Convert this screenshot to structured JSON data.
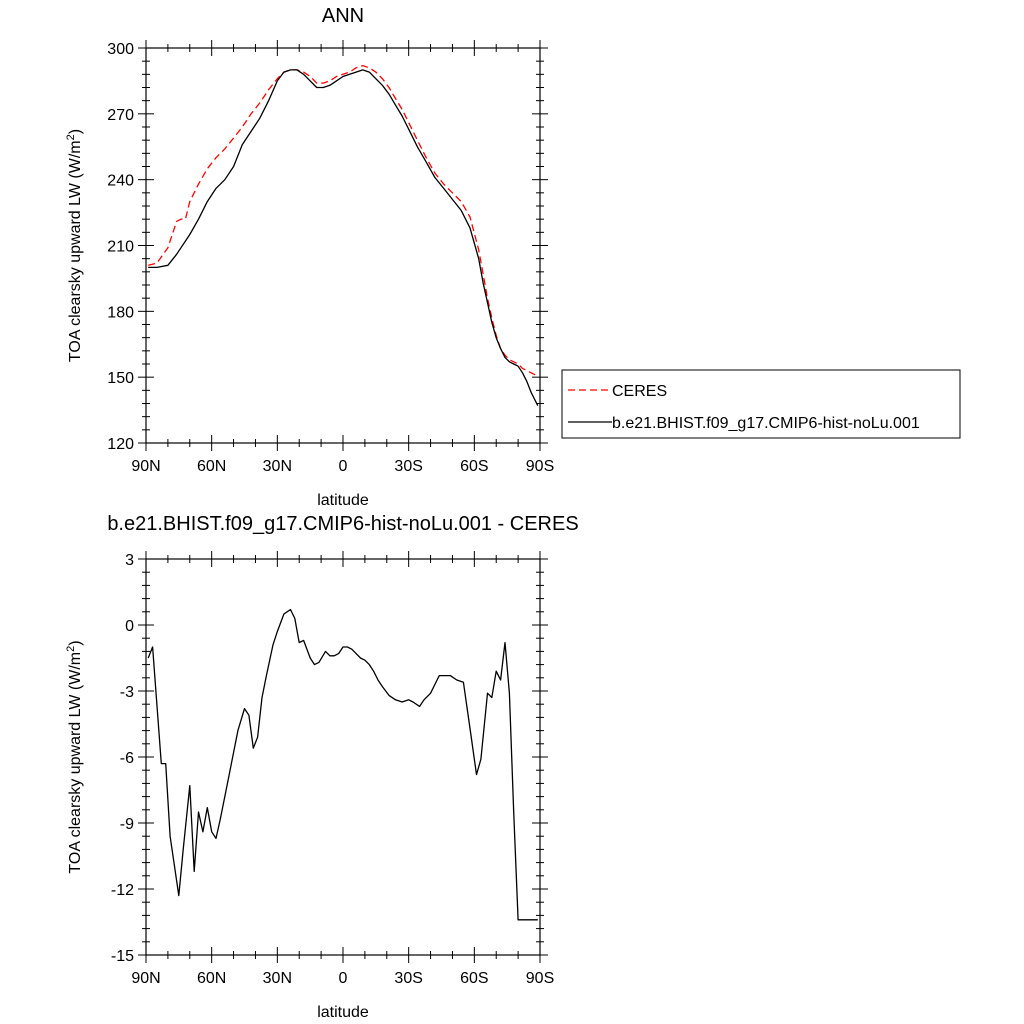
{
  "chart_data": [
    {
      "type": "line",
      "title": "ANN",
      "xlabel": "latitude",
      "ylabel": "TOA clearsky upward LW (W/m",
      "ylabel_sup": "2",
      "ylabel_end": ")",
      "xlim": [
        90,
        -90
      ],
      "ylim": [
        120,
        300
      ],
      "x_ticks": [
        90,
        60,
        30,
        0,
        -30,
        -60,
        -90
      ],
      "x_tick_labels": [
        "90N",
        "60N",
        "30N",
        "0",
        "30S",
        "60S",
        "90S"
      ],
      "y_ticks": [
        120,
        150,
        180,
        210,
        240,
        270,
        300
      ],
      "y_tick_labels": [
        "120",
        "150",
        "180",
        "210",
        "240",
        "270",
        "300"
      ],
      "legend_position": "right",
      "series": [
        {
          "name": "CERES",
          "color": "#ff0000",
          "dash": "dashed",
          "x": [
            89,
            85,
            80,
            76,
            74,
            72,
            70,
            66,
            62,
            58,
            54,
            50,
            46,
            42,
            38,
            34,
            30,
            27,
            24,
            21,
            18,
            15,
            12,
            9,
            6,
            3,
            0,
            -3,
            -6,
            -9,
            -12,
            -15,
            -18,
            -21,
            -24,
            -27,
            -30,
            -34,
            -38,
            -42,
            -46,
            -50,
            -54,
            -58,
            -62,
            -64,
            -66,
            -68,
            -70,
            -72,
            -74,
            -76,
            -78,
            -80,
            -82,
            -84,
            -86,
            -88,
            -89
          ],
          "values": [
            201,
            202,
            209,
            221,
            222,
            222,
            230,
            238,
            245,
            250,
            254,
            259,
            264,
            270,
            275,
            281,
            286,
            289,
            290,
            290,
            289,
            287,
            284,
            284,
            285,
            287,
            288,
            289,
            291,
            292,
            291,
            289,
            286,
            282,
            277,
            272,
            266,
            258,
            250,
            243,
            238,
            234,
            230,
            223,
            208,
            197,
            186,
            177,
            169,
            163,
            160,
            158,
            157,
            156,
            154,
            153,
            152,
            151,
            151
          ]
        },
        {
          "name": "b.e21.BHIST.f09_g17.CMIP6-hist-noLu.001",
          "color": "#000000",
          "dash": "solid",
          "x": [
            89,
            85,
            80,
            76,
            74,
            72,
            70,
            66,
            62,
            58,
            54,
            50,
            46,
            42,
            38,
            34,
            30,
            27,
            24,
            21,
            18,
            15,
            12,
            9,
            6,
            3,
            0,
            -3,
            -6,
            -9,
            -12,
            -15,
            -18,
            -21,
            -24,
            -27,
            -30,
            -34,
            -38,
            -42,
            -46,
            -50,
            -54,
            -58,
            -62,
            -64,
            -66,
            -68,
            -70,
            -72,
            -74,
            -76,
            -78,
            -80,
            -82,
            -84,
            -86,
            -88,
            -89
          ],
          "values": [
            200,
            200,
            201,
            206,
            209,
            212,
            215,
            222,
            230,
            236,
            240,
            246,
            256,
            262,
            268,
            276,
            285,
            289,
            290,
            290,
            288,
            285,
            282,
            282,
            283,
            285,
            287,
            288,
            289,
            290,
            289,
            286,
            283,
            279,
            274,
            269,
            263,
            255,
            248,
            241,
            236,
            231,
            226,
            218,
            204,
            193,
            184,
            175,
            168,
            163,
            159,
            157,
            156,
            155,
            152,
            148,
            143,
            139,
            137
          ]
        }
      ]
    },
    {
      "type": "line",
      "title": "b.e21.BHIST.f09_g17.CMIP6-hist-noLu.001 - CERES",
      "xlabel": "latitude",
      "ylabel": "TOA clearsky upward LW (W/m",
      "ylabel_sup": "2",
      "ylabel_end": ")",
      "xlim": [
        90,
        -90
      ],
      "ylim": [
        -15,
        3
      ],
      "x_ticks": [
        90,
        60,
        30,
        0,
        -30,
        -60,
        -90
      ],
      "x_tick_labels": [
        "90N",
        "60N",
        "30N",
        "0",
        "30S",
        "60S",
        "90S"
      ],
      "y_ticks": [
        -15,
        -12,
        -9,
        -6,
        -3,
        0,
        3
      ],
      "y_tick_labels": [
        "-15",
        "-12",
        "-9",
        "-6",
        "-3",
        "0",
        "3"
      ],
      "series": [
        {
          "color": "#000000",
          "x": [
            89,
            87,
            83,
            81,
            79,
            75,
            73,
            70,
            68,
            66,
            64,
            62,
            60,
            58,
            56,
            52,
            48,
            45,
            43,
            41,
            39,
            37,
            35,
            32,
            30,
            27,
            24,
            22,
            20,
            18,
            15,
            13,
            11,
            8,
            6,
            4,
            2,
            0,
            -2,
            -4,
            -6,
            -8,
            -10,
            -12,
            -14,
            -16,
            -18,
            -21,
            -24,
            -27,
            -30,
            -32,
            -35,
            -37,
            -40,
            -42,
            -44,
            -46,
            -49,
            -52,
            -55,
            -58,
            -61,
            -63,
            -66,
            -68,
            -70,
            -72,
            -74,
            -76,
            -78,
            -80,
            -82,
            -84,
            -86,
            -88,
            -89
          ],
          "values": [
            -1.5,
            -1.0,
            -6.3,
            -6.3,
            -9.6,
            -12.3,
            -10.2,
            -7.3,
            -11.2,
            -8.5,
            -9.4,
            -8.3,
            -9.4,
            -9.7,
            -8.8,
            -6.8,
            -4.8,
            -3.8,
            -4.1,
            -5.6,
            -5.1,
            -3.3,
            -2.3,
            -0.9,
            -0.3,
            0.5,
            0.7,
            0.3,
            -0.8,
            -0.7,
            -1.5,
            -1.8,
            -1.7,
            -1.2,
            -1.4,
            -1.4,
            -1.3,
            -1.0,
            -1.0,
            -1.1,
            -1.3,
            -1.5,
            -1.6,
            -1.8,
            -2.1,
            -2.5,
            -2.8,
            -3.2,
            -3.4,
            -3.5,
            -3.4,
            -3.5,
            -3.7,
            -3.4,
            -3.1,
            -2.7,
            -2.3,
            -2.3,
            -2.3,
            -2.5,
            -2.6,
            -4.7,
            -6.8,
            -6.1,
            -3.1,
            -3.3,
            -2.1,
            -2.5,
            -0.8,
            -3.1,
            -8.5,
            -13.4,
            -13.4,
            -13.4,
            -13.4,
            -13.4,
            -13.4
          ]
        }
      ]
    }
  ]
}
